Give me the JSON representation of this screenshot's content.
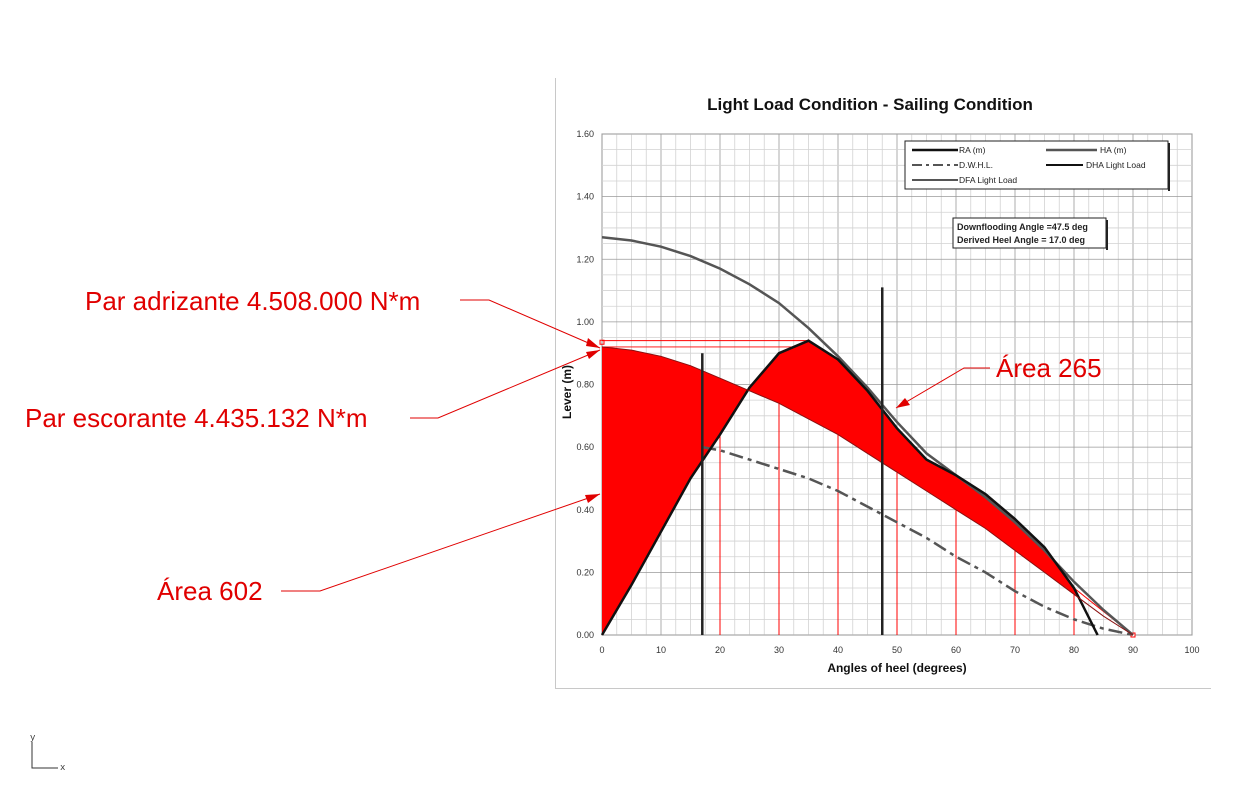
{
  "chart_data": {
    "type": "line",
    "title": "Light Load Condition - Sailing Condition",
    "xlabel": "Angles of heel (degrees)",
    "ylabel": "Lever (m)",
    "xlim": [
      0,
      100
    ],
    "ylim": [
      0,
      1.6
    ],
    "x_ticks": [
      "0",
      "10",
      "20",
      "30",
      "40",
      "50",
      "60",
      "70",
      "80",
      "90",
      "100"
    ],
    "y_ticks": [
      "0.00",
      "0.20",
      "0.40",
      "0.60",
      "0.80",
      "1.00",
      "1.20",
      "1.40",
      "1.60"
    ],
    "grid": true,
    "legend_position": "top-right",
    "legend": [
      "RA (m)",
      "HA (m)",
      "D.W.H.L.",
      "DHA Light Load",
      "DFA Light Load"
    ],
    "series": [
      {
        "name": "RA (m)",
        "x": [
          0,
          5,
          10,
          15,
          20,
          25,
          30,
          35,
          40,
          45,
          50,
          55,
          60,
          65,
          70,
          75,
          80,
          84
        ],
        "y": [
          0.0,
          0.16,
          0.33,
          0.5,
          0.64,
          0.79,
          0.9,
          0.94,
          0.88,
          0.78,
          0.66,
          0.56,
          0.51,
          0.45,
          0.37,
          0.28,
          0.15,
          0.0
        ]
      },
      {
        "name": "HA (m)",
        "x": [
          0,
          5,
          10,
          15,
          20,
          25,
          30,
          35,
          40,
          45,
          50,
          55,
          60,
          65,
          70,
          75,
          80,
          85,
          90
        ],
        "y": [
          1.27,
          1.26,
          1.24,
          1.21,
          1.17,
          1.12,
          1.06,
          0.98,
          0.89,
          0.79,
          0.68,
          0.58,
          0.51,
          0.44,
          0.36,
          0.27,
          0.17,
          0.08,
          0.0
        ]
      },
      {
        "name": "D.W.H.L.",
        "x": [
          17,
          20,
          25,
          30,
          35,
          40,
          45,
          50,
          55,
          60,
          65,
          70,
          75,
          80,
          85,
          90
        ],
        "y": [
          0.6,
          0.59,
          0.56,
          0.53,
          0.5,
          0.46,
          0.41,
          0.36,
          0.31,
          0.25,
          0.2,
          0.14,
          0.09,
          0.05,
          0.02,
          0.0
        ]
      },
      {
        "name": "Heeling lever (Par escorante)",
        "x": [
          0,
          5,
          10,
          15,
          20,
          25,
          30,
          35,
          40,
          45,
          50,
          55,
          60,
          65,
          70,
          75,
          80,
          85,
          90
        ],
        "y": [
          0.92,
          0.91,
          0.89,
          0.86,
          0.82,
          0.78,
          0.74,
          0.69,
          0.64,
          0.58,
          0.52,
          0.46,
          0.4,
          0.34,
          0.27,
          0.2,
          0.13,
          0.06,
          0.0
        ]
      },
      {
        "name": "DHA Light Load",
        "x": [
          17,
          17
        ],
        "y": [
          0.0,
          0.9
        ]
      },
      {
        "name": "DFA Light Load",
        "x": [
          47.5,
          47.5
        ],
        "y": [
          0.0,
          1.11
        ]
      }
    ],
    "red_verticals": [
      20,
      30,
      40,
      50,
      60,
      70,
      80
    ],
    "annotations": [
      "Downflooding Angle =47.5 deg",
      "Derived Heel Angle = 17.0 deg"
    ]
  },
  "callouts": {
    "righting": "Par adrizante 4.508.000 N*m",
    "heeling": "Par escorante 4.435.132 N*m",
    "area_left": "Área 602",
    "area_right": "Área 265"
  },
  "axes_indicator": {
    "y": "y",
    "x": "x"
  },
  "colors": {
    "fill_red": "#ff0000",
    "callout_red": "#e00000",
    "curve_dark": "#222222",
    "curve_gray": "#555555",
    "grid": "#c8c8c8"
  }
}
